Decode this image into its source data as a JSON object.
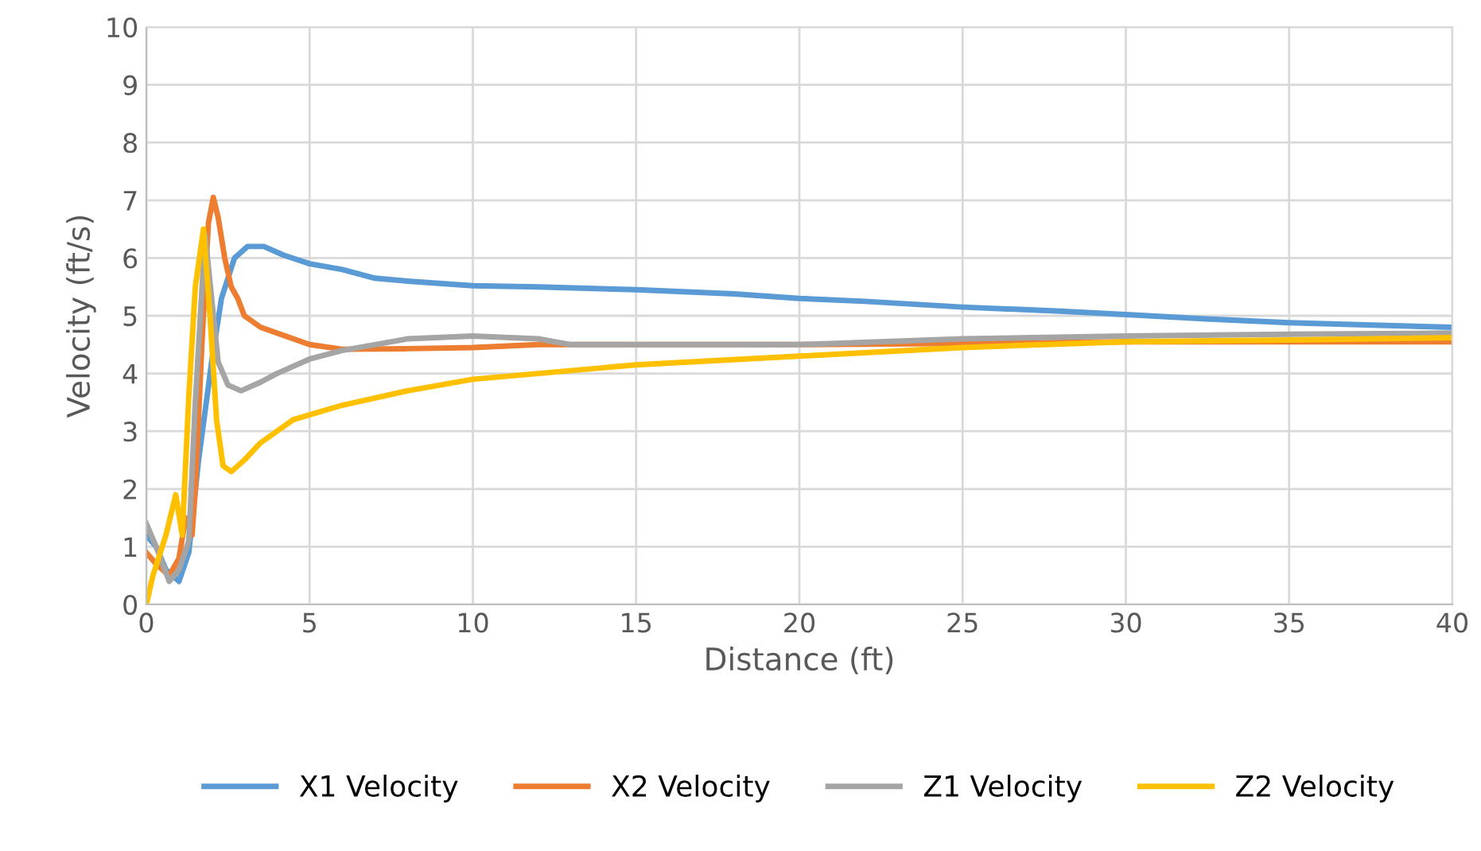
{
  "chart_data": {
    "type": "line",
    "xlabel": "Distance (ft)",
    "ylabel": "Velocity (ft/s)",
    "xlim": [
      0,
      40
    ],
    "ylim": [
      0,
      10
    ],
    "xticks": [
      0,
      5,
      10,
      15,
      20,
      25,
      30,
      35,
      40
    ],
    "yticks": [
      0,
      1,
      2,
      3,
      4,
      5,
      6,
      7,
      8,
      9,
      10
    ],
    "grid": true,
    "legend": "bottom",
    "marker": "none",
    "line_style": "solid",
    "series": [
      {
        "name": "X1 Velocity",
        "color": "#5b9bd5",
        "x": [
          0,
          0.3,
          0.6,
          1.0,
          1.3,
          1.6,
          2.0,
          2.3,
          2.7,
          3.1,
          3.6,
          4.2,
          5,
          6,
          7,
          8,
          10,
          12,
          15,
          18,
          20,
          22,
          25,
          28,
          30,
          33,
          35,
          38,
          40
        ],
        "values": [
          1.2,
          1.0,
          0.6,
          0.4,
          0.9,
          2.5,
          4.2,
          5.3,
          6.0,
          6.2,
          6.2,
          6.05,
          5.9,
          5.8,
          5.65,
          5.6,
          5.52,
          5.5,
          5.45,
          5.38,
          5.3,
          5.25,
          5.15,
          5.08,
          5.02,
          4.93,
          4.88,
          4.83,
          4.8
        ]
      },
      {
        "name": "X2 Velocity",
        "color": "#ed7d31",
        "x": [
          0,
          0.3,
          0.7,
          1.0,
          1.2,
          1.4,
          1.5,
          1.7,
          1.9,
          2.05,
          2.2,
          2.4,
          2.6,
          2.8,
          3.0,
          3.5,
          4,
          5,
          6,
          8,
          10,
          12,
          15,
          20,
          25,
          30,
          35,
          40
        ],
        "values": [
          0.9,
          0.7,
          0.5,
          0.8,
          1.5,
          1.2,
          2.0,
          4.5,
          6.6,
          7.05,
          6.7,
          6.0,
          5.5,
          5.3,
          5.0,
          4.8,
          4.7,
          4.5,
          4.42,
          4.43,
          4.45,
          4.5,
          4.5,
          4.5,
          4.52,
          4.55,
          4.55,
          4.55
        ]
      },
      {
        "name": "Z1 Velocity",
        "color": "#a5a5a5",
        "x": [
          0,
          0.3,
          0.7,
          1.0,
          1.3,
          1.5,
          1.8,
          2.0,
          2.2,
          2.5,
          2.9,
          3.5,
          4,
          5,
          6,
          7,
          8,
          10,
          12,
          13,
          15,
          20,
          25,
          30,
          35,
          40
        ],
        "values": [
          1.4,
          1.0,
          0.4,
          0.6,
          1.1,
          3.5,
          6.4,
          5.3,
          4.2,
          3.8,
          3.7,
          3.85,
          4.0,
          4.25,
          4.4,
          4.5,
          4.6,
          4.65,
          4.6,
          4.5,
          4.5,
          4.5,
          4.6,
          4.65,
          4.68,
          4.7
        ]
      },
      {
        "name": "Z2 Velocity",
        "color": "#ffc000",
        "x": [
          0,
          0.2,
          0.6,
          0.9,
          1.1,
          1.3,
          1.5,
          1.75,
          1.95,
          2.15,
          2.35,
          2.6,
          3.0,
          3.5,
          4.5,
          6,
          8,
          10,
          12,
          15,
          20,
          25,
          30,
          35,
          40
        ],
        "values": [
          0,
          0.5,
          1.2,
          1.9,
          1.2,
          3.6,
          5.5,
          6.5,
          5.0,
          3.2,
          2.4,
          2.3,
          2.5,
          2.8,
          3.2,
          3.45,
          3.7,
          3.9,
          4.0,
          4.15,
          4.3,
          4.45,
          4.55,
          4.58,
          4.62
        ]
      }
    ]
  }
}
